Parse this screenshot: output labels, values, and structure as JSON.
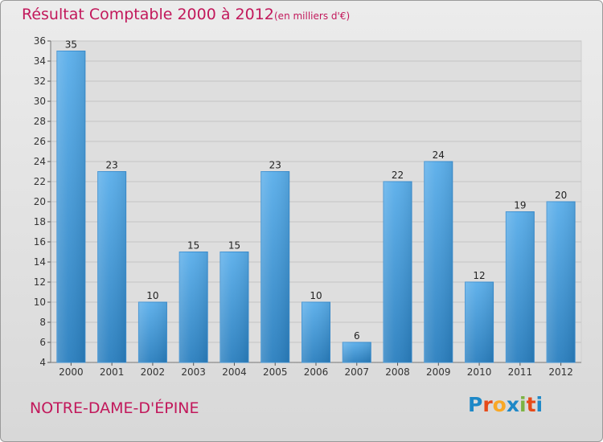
{
  "header": {
    "title": "Résultat Comptable 2000 à 2012",
    "subtitle": "(en milliers d'€)"
  },
  "footer": {
    "commune": "NOTRE-DAME-D'ÉPINE",
    "logo_letters": [
      "P",
      "r",
      "o",
      "x",
      "i",
      "t",
      "i"
    ],
    "logo_colors": [
      "#1e88c7",
      "#e64a19",
      "#f9a825",
      "#1e88c7",
      "#7cb342",
      "#e64a19",
      "#1e88c7"
    ]
  },
  "chart_data": {
    "type": "bar",
    "title": "Résultat Comptable 2000 à 2012",
    "subtitle": "(en milliers d'€)",
    "categories": [
      "2000",
      "2001",
      "2002",
      "2003",
      "2004",
      "2005",
      "2006",
      "2007",
      "2008",
      "2009",
      "2010",
      "2011",
      "2012"
    ],
    "values": [
      35,
      23,
      10,
      15,
      15,
      23,
      10,
      6,
      22,
      24,
      12,
      19,
      20
    ],
    "ylim": [
      4,
      36
    ],
    "yticks": [
      4,
      6,
      8,
      10,
      12,
      14,
      16,
      18,
      20,
      22,
      24,
      26,
      28,
      30,
      32,
      34,
      36
    ],
    "grid": true,
    "colors": {
      "bar_top": "#5aaeea",
      "bar_bottom": "#2a7fbf",
      "bar_edge": "#3a8ed0",
      "plot_bg": "#dedede",
      "grid": "#c4c4c4"
    }
  }
}
